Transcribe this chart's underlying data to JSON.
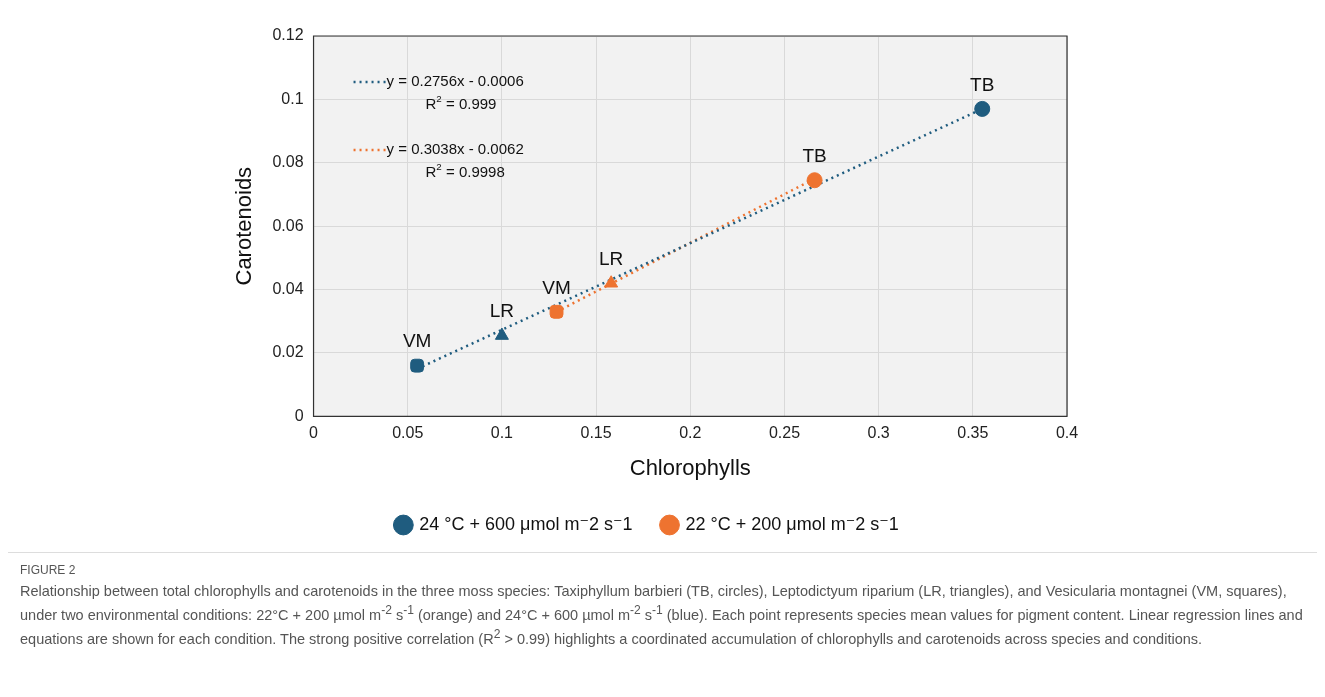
{
  "chart_data": {
    "type": "scatter",
    "title": "FIGURE 2",
    "xlabel": "Chlorophylls",
    "ylabel": "Carotenoids",
    "xlim": [
      0,
      0.4
    ],
    "xticks": [
      0,
      0.05,
      0.1,
      0.15,
      0.2,
      0.25,
      0.3,
      0.35,
      0.4
    ],
    "ylim": [
      0,
      0.12
    ],
    "yticks": [
      0,
      0.02,
      0.04,
      0.06,
      0.08,
      0.1,
      0.12
    ],
    "grid": true,
    "legend": "bottom",
    "series": [
      {
        "name": "24 °C + 600 μmol m⁻2 s⁻1",
        "color": "#1f5c7f",
        "x": [
          0.355,
          0.1,
          0.055
        ],
        "values": [
          0.097,
          0.0255,
          0.016
        ],
        "marker": [
          "circle",
          "triangle",
          "square"
        ]
      },
      {
        "name": "22 °C + 200 μmol m⁻2 s⁻1",
        "color": "#ee7330",
        "x": [
          0.266,
          0.158,
          0.129
        ],
        "values": [
          0.0745,
          0.042,
          0.033
        ],
        "marker": [
          "circle",
          "triangle",
          "square"
        ]
      },
      {
        "type": "line",
        "name": "y = 0.2756x - 0.0006\nR$^{2}$ = 0.999",
        "color": "#1f5c7f",
        "x": [
          0.055,
          0.355
        ],
        "values": [
          0.015,
          0.097
        ],
        "line_style": "dotted",
        "marker": "none"
      },
      {
        "type": "line",
        "name": "y = 0.3038x - 0.0062\nR$^{2}$ = 0.9998",
        "color": "#ee7330",
        "x": [
          0.129,
          0.266
        ],
        "values": [
          0.033,
          0.075
        ],
        "line_style": "dotted",
        "marker": "none"
      }
    ],
    "annotations": [
      {
        "text": "VM",
        "x": 0.055,
        "y": 0.016
      },
      {
        "text": "LR",
        "x": 0.1,
        "y": 0.0255
      },
      {
        "text": "TB",
        "x": 0.355,
        "y": 0.097
      },
      {
        "text": "VM",
        "x": 0.129,
        "y": 0.033
      },
      {
        "text": "LR",
        "x": 0.158,
        "y": 0.042
      },
      {
        "text": "TB",
        "x": 0.266,
        "y": 0.0745
      },
      "Relationship between total chlorophylls and carotenoids in the three moss species: Taxiphyllum barbieri (TB, circles), Leptodictyum riparium (LR, triangles), and Vesicularia montagnei (VM, squares), under two environmental conditions: 22°C + 200 µmol m$^{-2}$ s$^{-1}$ (orange) and 24°C + 600 µmol m$^{-2}$ s$^{-1}$ (blue). Each point represents species mean values for pigment content. Linear regression lines and equations are shown for each condition. The strong positive correlation (R$^{2}$ > 0.99) highlights a coordinated accumulation of chlorophylls and carotenoids across species and conditions."
    ]
  }
}
